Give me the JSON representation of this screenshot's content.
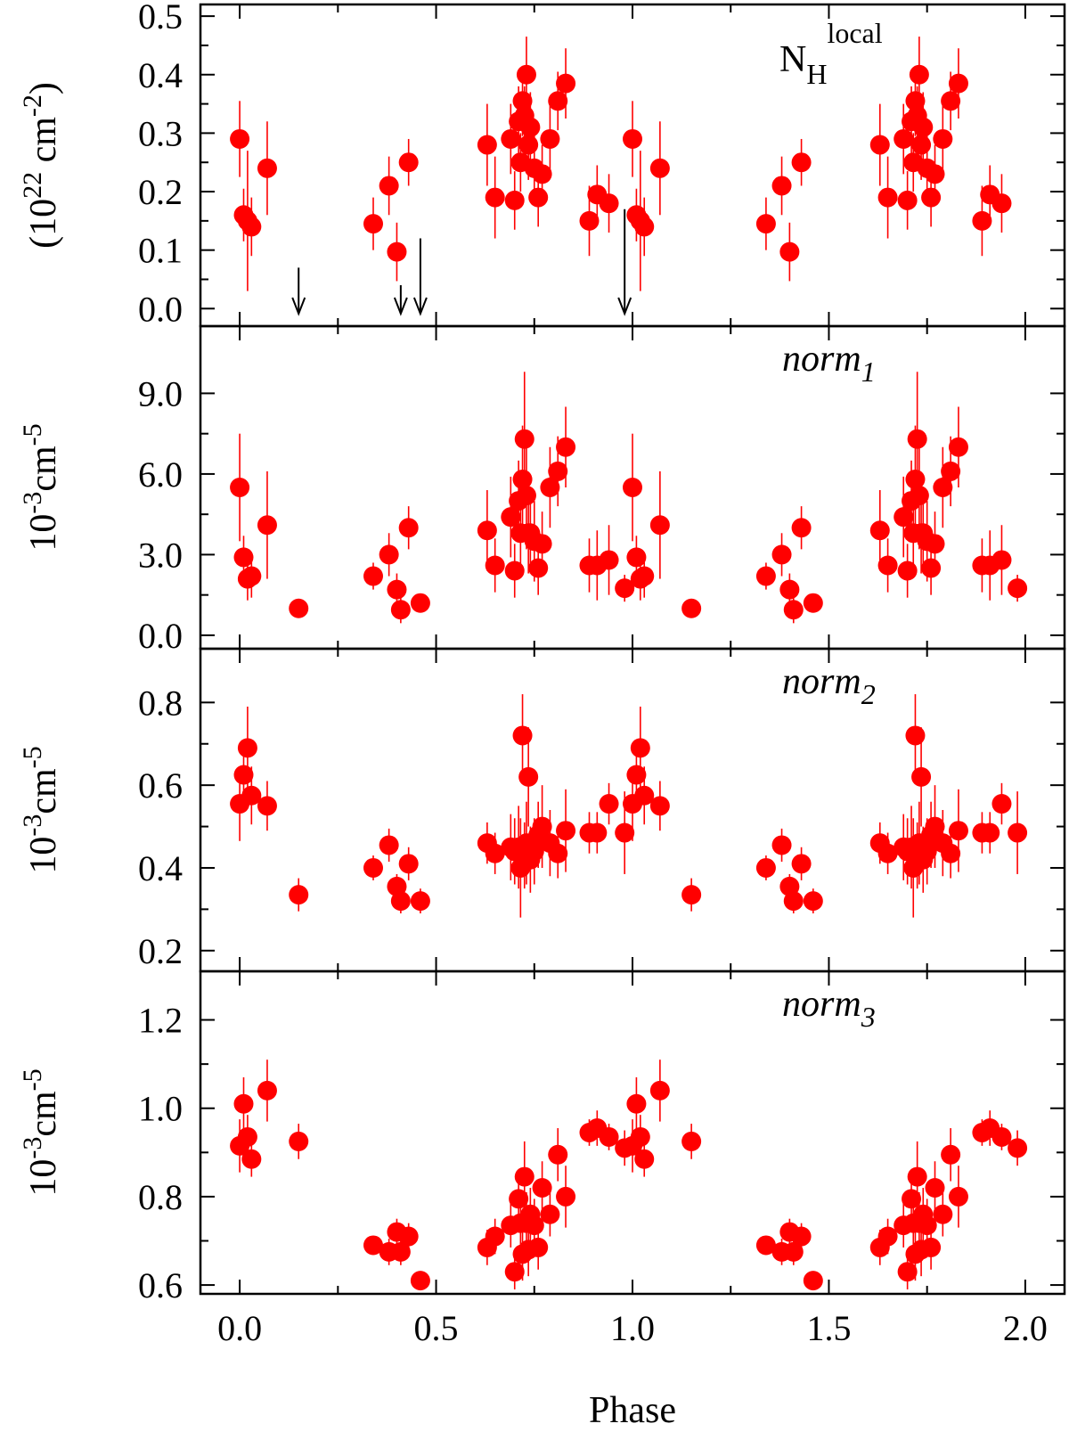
{
  "colors": {
    "marker": "#ff0000",
    "errorbar": "#ff0000",
    "axis": "#000000",
    "arrow": "#000000"
  },
  "chart_data": [
    {
      "type": "scatter",
      "panel_label": "N_H^local",
      "panel_label_parts": {
        "base": "N",
        "sub": "H",
        "sup": "local"
      },
      "ylabel": "(10^22 cm^-2)",
      "ylabel_parts": {
        "open": "(10",
        "exp": "22",
        "mid": " cm",
        "exp2": "-2",
        "close": ")"
      },
      "xlim": [
        -0.1,
        2.1
      ],
      "ylim": [
        -0.03,
        0.52
      ],
      "yticks": [
        "0.0",
        "0.1",
        "0.2",
        "0.3",
        "0.4",
        "0.5"
      ],
      "ytick_values": [
        0.0,
        0.1,
        0.2,
        0.3,
        0.4,
        0.5
      ],
      "x": [
        0.0,
        0.01,
        0.02,
        0.03,
        0.07,
        0.34,
        0.38,
        0.4,
        0.43,
        0.63,
        0.65,
        0.69,
        0.7,
        0.71,
        0.715,
        0.72,
        0.725,
        0.73,
        0.735,
        0.74,
        0.75,
        0.76,
        0.77,
        0.79,
        0.81,
        0.83,
        0.89,
        0.91,
        0.94,
        1.0,
        1.01,
        1.02,
        1.03,
        1.07,
        1.34,
        1.38,
        1.4,
        1.43,
        1.63,
        1.65,
        1.69,
        1.7,
        1.71,
        1.715,
        1.72,
        1.725,
        1.73,
        1.735,
        1.74,
        1.75,
        1.76,
        1.77,
        1.79,
        1.81,
        1.83,
        1.89,
        1.91,
        1.94
      ],
      "y": [
        0.29,
        0.16,
        0.15,
        0.14,
        0.24,
        0.145,
        0.21,
        0.097,
        0.25,
        0.28,
        0.19,
        0.29,
        0.185,
        0.32,
        0.25,
        0.355,
        0.33,
        0.4,
        0.28,
        0.31,
        0.24,
        0.19,
        0.23,
        0.29,
        0.355,
        0.385,
        0.15,
        0.195,
        0.18,
        0.29,
        0.16,
        0.15,
        0.14,
        0.24,
        0.145,
        0.21,
        0.097,
        0.25,
        0.28,
        0.19,
        0.29,
        0.185,
        0.32,
        0.25,
        0.355,
        0.33,
        0.4,
        0.28,
        0.31,
        0.24,
        0.19,
        0.23,
        0.29,
        0.355,
        0.385,
        0.15,
        0.195,
        0.18
      ],
      "yerr": [
        0.065,
        0.045,
        0.12,
        0.05,
        0.08,
        0.045,
        0.05,
        0.05,
        0.04,
        0.07,
        0.07,
        0.06,
        0.05,
        0.06,
        0.05,
        0.06,
        0.05,
        0.065,
        0.06,
        0.06,
        0.06,
        0.05,
        0.05,
        0.06,
        0.05,
        0.06,
        0.06,
        0.05,
        0.05,
        0.065,
        0.045,
        0.12,
        0.05,
        0.08,
        0.045,
        0.05,
        0.05,
        0.04,
        0.07,
        0.07,
        0.06,
        0.05,
        0.06,
        0.05,
        0.06,
        0.05,
        0.065,
        0.06,
        0.06,
        0.06,
        0.05,
        0.05,
        0.06,
        0.05,
        0.06,
        0.06,
        0.05,
        0.05
      ],
      "upper_limits": [
        {
          "x": 0.15,
          "y_top": 0.07
        },
        {
          "x": 0.41,
          "y_top": 0.04
        },
        {
          "x": 0.46,
          "y_top": 0.12
        },
        {
          "x": 0.98,
          "y_top": 0.17
        }
      ]
    },
    {
      "type": "scatter",
      "panel_label": "norm1",
      "panel_label_parts": {
        "base": "norm",
        "sub": "1"
      },
      "ylabel": "10^-3 cm^-5",
      "ylabel_parts": {
        "base": "10",
        "exp": "-3",
        "mid": "cm",
        "exp2": "-5"
      },
      "xlim": [
        -0.1,
        2.1
      ],
      "ylim": [
        -0.5,
        11.5
      ],
      "yticks": [
        "0.0",
        "3.0",
        "6.0",
        "9.0"
      ],
      "ytick_values": [
        0.0,
        3.0,
        6.0,
        9.0
      ],
      "x": [
        0.0,
        0.01,
        0.02,
        0.03,
        0.07,
        0.15,
        0.34,
        0.38,
        0.4,
        0.41,
        0.43,
        0.46,
        0.63,
        0.65,
        0.69,
        0.7,
        0.71,
        0.715,
        0.72,
        0.725,
        0.73,
        0.735,
        0.74,
        0.75,
        0.76,
        0.77,
        0.79,
        0.81,
        0.83,
        0.89,
        0.91,
        0.94,
        0.98,
        1.0,
        1.01,
        1.02,
        1.03,
        1.07,
        1.15,
        1.34,
        1.38,
        1.4,
        1.41,
        1.43,
        1.46,
        1.63,
        1.65,
        1.69,
        1.7,
        1.71,
        1.715,
        1.72,
        1.725,
        1.73,
        1.735,
        1.74,
        1.75,
        1.76,
        1.77,
        1.79,
        1.81,
        1.83,
        1.89,
        1.91,
        1.94,
        1.98
      ],
      "y": [
        5.5,
        2.9,
        2.1,
        2.2,
        4.1,
        1.0,
        2.2,
        3.0,
        1.7,
        0.95,
        4.0,
        1.2,
        3.9,
        2.6,
        4.4,
        2.4,
        5.0,
        3.8,
        5.8,
        7.3,
        5.2,
        3.8,
        3.8,
        3.5,
        2.5,
        3.4,
        5.5,
        6.1,
        7.0,
        2.6,
        2.6,
        2.8,
        1.75,
        5.5,
        2.9,
        2.1,
        2.2,
        4.1,
        1.0,
        2.2,
        3.0,
        1.7,
        0.95,
        4.0,
        1.2,
        3.9,
        2.6,
        4.4,
        2.4,
        5.0,
        3.8,
        5.8,
        7.3,
        5.2,
        3.8,
        3.8,
        3.5,
        2.5,
        3.4,
        5.5,
        6.1,
        7.0,
        2.6,
        2.6,
        2.8,
        1.75
      ],
      "yerr": [
        2.0,
        0.8,
        0.8,
        0.8,
        2.0,
        0.3,
        0.5,
        0.8,
        0.6,
        0.5,
        0.8,
        0.3,
        1.5,
        1.0,
        1.5,
        1.0,
        1.5,
        1.2,
        2.0,
        2.5,
        2.0,
        1.5,
        1.5,
        1.5,
        1.0,
        1.2,
        1.5,
        1.3,
        1.5,
        1.0,
        1.3,
        1.3,
        0.5,
        2.0,
        0.8,
        0.8,
        0.8,
        2.0,
        0.3,
        0.5,
        0.8,
        0.6,
        0.5,
        0.8,
        0.3,
        1.5,
        1.0,
        1.5,
        1.0,
        1.5,
        1.2,
        2.0,
        2.5,
        2.0,
        1.5,
        1.5,
        1.5,
        1.0,
        1.2,
        1.5,
        1.3,
        1.5,
        1.0,
        1.3,
        1.3,
        0.5
      ]
    },
    {
      "type": "scatter",
      "panel_label": "norm2",
      "panel_label_parts": {
        "base": "norm",
        "sub": "2"
      },
      "ylabel": "10^-3 cm^-5",
      "ylabel_parts": {
        "base": "10",
        "exp": "-3",
        "mid": "cm",
        "exp2": "-5"
      },
      "xlim": [
        -0.1,
        2.1
      ],
      "ylim": [
        0.15,
        0.93
      ],
      "yticks": [
        "0.2",
        "0.4",
        "0.6",
        "0.8"
      ],
      "ytick_values": [
        0.2,
        0.4,
        0.6,
        0.8
      ],
      "x": [
        0.0,
        0.01,
        0.02,
        0.03,
        0.07,
        0.15,
        0.34,
        0.38,
        0.4,
        0.41,
        0.43,
        0.46,
        0.63,
        0.65,
        0.69,
        0.7,
        0.71,
        0.715,
        0.72,
        0.725,
        0.73,
        0.735,
        0.74,
        0.75,
        0.76,
        0.77,
        0.79,
        0.81,
        0.83,
        0.89,
        0.91,
        0.94,
        0.98,
        1.0,
        1.01,
        1.02,
        1.03,
        1.07,
        1.15,
        1.34,
        1.38,
        1.4,
        1.41,
        1.43,
        1.46,
        1.63,
        1.65,
        1.69,
        1.7,
        1.71,
        1.715,
        1.72,
        1.725,
        1.73,
        1.735,
        1.74,
        1.75,
        1.76,
        1.77,
        1.79,
        1.81,
        1.83,
        1.89,
        1.91,
        1.94,
        1.98
      ],
      "y": [
        0.555,
        0.625,
        0.69,
        0.575,
        0.55,
        0.335,
        0.4,
        0.455,
        0.355,
        0.32,
        0.41,
        0.32,
        0.46,
        0.435,
        0.45,
        0.44,
        0.45,
        0.4,
        0.72,
        0.43,
        0.46,
        0.62,
        0.42,
        0.44,
        0.48,
        0.5,
        0.46,
        0.435,
        0.49,
        0.485,
        0.485,
        0.555,
        0.485,
        0.555,
        0.625,
        0.69,
        0.575,
        0.55,
        0.335,
        0.4,
        0.455,
        0.355,
        0.32,
        0.41,
        0.32,
        0.46,
        0.435,
        0.45,
        0.44,
        0.45,
        0.4,
        0.72,
        0.43,
        0.46,
        0.62,
        0.42,
        0.44,
        0.48,
        0.5,
        0.46,
        0.435,
        0.49,
        0.485,
        0.485,
        0.555,
        0.485
      ],
      "yerr": [
        0.09,
        0.07,
        0.1,
        0.07,
        0.06,
        0.04,
        0.03,
        0.04,
        0.03,
        0.03,
        0.04,
        0.03,
        0.05,
        0.05,
        0.08,
        0.08,
        0.1,
        0.12,
        0.1,
        0.08,
        0.1,
        0.12,
        0.08,
        0.08,
        0.08,
        0.1,
        0.08,
        0.06,
        0.1,
        0.05,
        0.05,
        0.05,
        0.1,
        0.09,
        0.07,
        0.1,
        0.07,
        0.06,
        0.04,
        0.03,
        0.04,
        0.03,
        0.03,
        0.04,
        0.03,
        0.05,
        0.05,
        0.08,
        0.08,
        0.1,
        0.12,
        0.1,
        0.08,
        0.1,
        0.12,
        0.08,
        0.08,
        0.08,
        0.1,
        0.08,
        0.06,
        0.1,
        0.05,
        0.05,
        0.05,
        0.1
      ]
    },
    {
      "type": "scatter",
      "panel_label": "norm3",
      "panel_label_parts": {
        "base": "norm",
        "sub": "3"
      },
      "ylabel": "10^-3 cm^-5",
      "ylabel_parts": {
        "base": "10",
        "exp": "-3",
        "mid": "cm",
        "exp2": "-5"
      },
      "xlabel": "Phase",
      "xlim": [
        -0.1,
        2.1
      ],
      "xticks": [
        "0.0",
        "0.5",
        "1.0",
        "1.5",
        "2.0"
      ],
      "xtick_values": [
        0.0,
        0.5,
        1.0,
        1.5,
        2.0
      ],
      "ylim": [
        0.58,
        1.31
      ],
      "yticks": [
        "0.6",
        "0.8",
        "1.0",
        "1.2"
      ],
      "ytick_values": [
        0.6,
        0.8,
        1.0,
        1.2
      ],
      "x": [
        0.0,
        0.01,
        0.02,
        0.03,
        0.07,
        0.15,
        0.34,
        0.38,
        0.4,
        0.41,
        0.43,
        0.46,
        0.63,
        0.65,
        0.69,
        0.7,
        0.71,
        0.715,
        0.72,
        0.725,
        0.73,
        0.735,
        0.74,
        0.75,
        0.76,
        0.77,
        0.79,
        0.81,
        0.83,
        0.89,
        0.91,
        0.94,
        0.98,
        1.0,
        1.01,
        1.02,
        1.03,
        1.07,
        1.15,
        1.34,
        1.38,
        1.4,
        1.41,
        1.43,
        1.46,
        1.63,
        1.65,
        1.69,
        1.7,
        1.71,
        1.715,
        1.72,
        1.725,
        1.73,
        1.735,
        1.74,
        1.75,
        1.76,
        1.77,
        1.79,
        1.81,
        1.83,
        1.89,
        1.91,
        1.94,
        1.98
      ],
      "y": [
        0.915,
        1.01,
        0.935,
        0.885,
        1.04,
        0.925,
        0.69,
        0.675,
        0.72,
        0.675,
        0.71,
        0.61,
        0.685,
        0.71,
        0.735,
        0.63,
        0.795,
        0.74,
        0.67,
        0.845,
        0.74,
        0.68,
        0.76,
        0.735,
        0.685,
        0.82,
        0.76,
        0.895,
        0.8,
        0.945,
        0.955,
        0.935,
        0.91,
        0.915,
        1.01,
        0.935,
        0.885,
        1.04,
        0.925,
        0.69,
        0.675,
        0.72,
        0.675,
        0.71,
        0.61,
        0.685,
        0.71,
        0.735,
        0.63,
        0.795,
        0.74,
        0.67,
        0.845,
        0.74,
        0.68,
        0.76,
        0.735,
        0.685,
        0.82,
        0.76,
        0.895,
        0.8,
        0.945,
        0.955,
        0.935,
        0.91
      ],
      "yerr": [
        0.06,
        0.06,
        0.05,
        0.04,
        0.07,
        0.04,
        0.02,
        0.03,
        0.03,
        0.03,
        0.03,
        0.02,
        0.04,
        0.04,
        0.05,
        0.04,
        0.06,
        0.06,
        0.06,
        0.08,
        0.07,
        0.06,
        0.06,
        0.06,
        0.05,
        0.06,
        0.05,
        0.06,
        0.07,
        0.03,
        0.04,
        0.03,
        0.04,
        0.06,
        0.06,
        0.05,
        0.04,
        0.07,
        0.04,
        0.02,
        0.03,
        0.03,
        0.03,
        0.03,
        0.02,
        0.04,
        0.04,
        0.05,
        0.04,
        0.06,
        0.06,
        0.06,
        0.08,
        0.07,
        0.06,
        0.06,
        0.06,
        0.05,
        0.06,
        0.05,
        0.06,
        0.07,
        0.03,
        0.04,
        0.03,
        0.04
      ]
    }
  ]
}
